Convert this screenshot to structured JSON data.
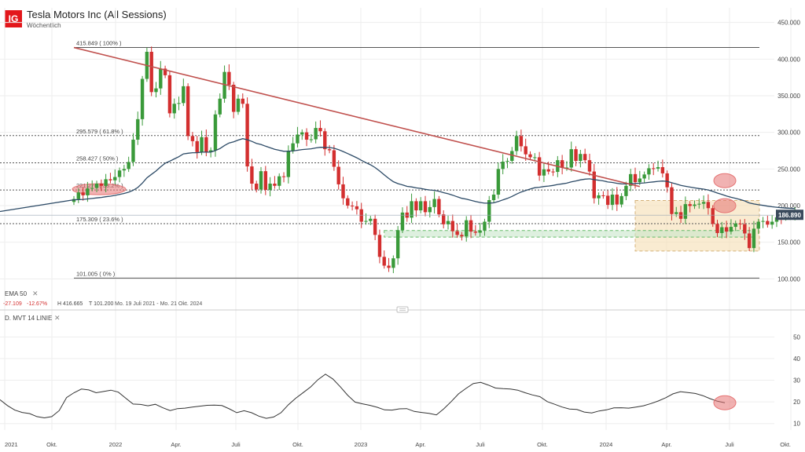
{
  "header": {
    "logo_text": "IG",
    "title": "Tesla Motors Inc (All Sessions)",
    "subtitle": "Wöchentlich"
  },
  "colors": {
    "up": "#3a9a3a",
    "down": "#d32f2f",
    "ema": "#2c4a66",
    "trendline": "#c0504d",
    "fib": "#555555",
    "highlight_oval": "#e57373",
    "box": "#f5deb3",
    "support_zone": "#c8e6c9",
    "price_label_bg": "#3a4a5c"
  },
  "price_panel": {
    "ema_label": "EMA  50",
    "stats": [
      "-27.109",
      "-12.67%",
      "H 416.665",
      "T 101.200",
      "Mo. 19 Juli 2021 - Mo. 21 Okt. 2024"
    ],
    "current_price": "186.890"
  },
  "indicator_panel": {
    "label": "D. MVT  14  LINIE",
    "close_symbol": "✕"
  },
  "chart_data": [
    {
      "type": "candlestick",
      "title": "Tesla Motors Inc (All Sessions)",
      "timeframe": "Wöchentlich",
      "x_ticks": [
        "2021",
        "Okt.",
        "2022",
        "Apr.",
        "Juli",
        "Okt.",
        "2023",
        "Apr.",
        "Juli",
        "Okt.",
        "2024",
        "Apr.",
        "Juli",
        "Okt."
      ],
      "y_ticks": [
        "100.000",
        "150.000",
        "200.000",
        "250.000",
        "300.000",
        "350.000",
        "400.000",
        "450.000"
      ],
      "ylim": [
        95,
        470
      ],
      "fib_levels": [
        {
          "value": 415.849,
          "label": "415.849 ( 100% )"
        },
        {
          "value": 295.579,
          "label": "295.579 ( 61.8% )"
        },
        {
          "value": 258.427,
          "label": "258.427 ( 50% )"
        },
        {
          "value": 221.276,
          "label": "221.276 ( 38.2% )"
        },
        {
          "value": 175.309,
          "label": "175.309 ( 23.6% )"
        },
        {
          "value": 101.005,
          "label": "101.005 ( 0% )"
        }
      ],
      "closes": [
        209.0,
        218.0,
        214.0,
        223.5,
        224.0,
        230.0,
        227.0,
        236.0,
        234.5,
        239.0,
        248.0,
        250.0,
        259.5,
        290.0,
        318.0,
        373.0,
        410.0,
        355.0,
        360.0,
        387.0,
        378.0,
        326.0,
        339.0,
        340.0,
        363.0,
        295.0,
        288.0,
        273.0,
        293.5,
        273.0,
        275.5,
        324.5,
        346.0,
        382.5,
        365.0,
        328.0,
        346.0,
        339.0,
        253.5,
        230.0,
        222.0,
        247.0,
        221.5,
        230.0,
        227.0,
        240.0,
        239.0,
        275.0,
        285.0,
        297.0,
        300.0,
        290.0,
        290.5,
        306.0,
        301.5,
        277.0,
        275.5,
        253.0,
        229.0,
        210.0,
        200.0,
        199.0,
        195.0,
        178.0,
        179.0,
        182.0,
        160.0,
        130.0,
        118.0,
        115.0,
        128.0,
        166.5,
        190.5,
        183.5,
        206.0,
        193.5,
        206.0,
        191.0,
        198.0,
        209.0,
        188.0,
        174.5,
        179.0,
        165.0,
        160.0,
        158.0,
        180.0,
        164.5,
        163.0,
        166.0,
        178.0,
        207.5,
        215.0,
        250.0,
        260.0,
        261.0,
        274.5,
        295.0,
        281.0,
        270.0,
        266.0,
        266.0,
        241.0,
        249.5,
        246.5,
        246.0,
        262.0,
        251.5,
        252.0,
        277.0,
        261.0,
        270.5,
        262.0,
        246.5,
        210.0,
        214.0,
        213.5,
        201.0,
        215.0,
        201.5,
        213.0,
        227.0,
        243.0,
        232.0,
        237.0,
        242.5,
        251.0,
        250.5,
        252.5,
        244.0,
        225.0,
        188.5,
        191.0,
        182.0,
        202.0,
        199.5,
        201.5,
        202.5,
        205.0,
        196.5,
        175.0,
        162.5,
        170.5,
        164.5,
        171.0,
        175.5,
        174.5,
        162.0,
        142.0,
        168.5,
        178.0,
        179.0,
        174.0,
        178.0,
        184.0,
        183.5,
        186.0,
        187.0,
        189.0
      ],
      "ema_50": [
        207.9,
        208.3,
        208.5,
        209.1,
        209.7,
        210.5,
        211.1,
        212.1,
        212.9,
        213.9,
        215.2,
        216.6,
        218.3,
        221.0,
        224.8,
        230.7,
        237.9,
        242.6,
        247.3,
        252.9,
        257.9,
        260.6,
        263.7,
        266.7,
        270.6,
        271.5,
        272.2,
        272.2,
        273.0,
        273.0,
        273.1,
        275.1,
        277.9,
        282.1,
        285.5,
        287.1,
        289.5,
        291.4,
        289.9,
        287.6,
        285.0,
        283.5,
        281.1,
        279.0,
        276.9,
        275.5,
        274.1,
        274.2,
        274.6,
        275.5,
        276.5,
        277.0,
        277.6,
        278.7,
        279.6,
        279.5,
        279.3,
        278.3,
        276.4,
        273.8,
        271.0,
        268.1,
        265.2,
        261.8,
        258.6,
        255.7,
        252.0,
        247.2,
        242.1,
        237.1,
        232.7,
        230.0,
        228.3,
        226.3,
        225.5,
        224.2,
        223.5,
        222.2,
        221.3,
        220.8,
        219.5,
        217.7,
        216.2,
        214.2,
        212.0,
        210.0,
        208.9,
        207.3,
        205.7,
        204.3,
        203.3,
        203.4,
        203.8,
        205.6,
        207.8,
        209.9,
        212.5,
        215.8,
        218.5,
        220.7,
        222.6,
        224.4,
        225.1,
        226.0,
        226.7,
        227.5,
        228.8,
        229.7,
        230.6,
        232.4,
        233.6,
        235.1,
        236.1,
        236.5,
        235.5,
        234.6,
        233.7,
        232.3,
        231.6,
        230.4,
        229.7,
        229.6,
        230.1,
        230.2,
        230.5,
        231.0,
        231.7,
        232.4,
        233.1,
        233.5,
        233.1,
        231.2,
        229.5,
        227.5,
        226.4,
        225.3,
        224.2,
        223.3,
        222.5,
        221.3,
        219.4,
        217.1,
        215.2,
        213.1,
        211.4,
        209.9,
        208.4,
        206.4,
        203.6,
        202.2,
        201.2,
        200.3,
        199.2,
        198.4,
        197.7,
        197.1,
        196.6,
        196.2,
        195.9
      ],
      "trendline": [
        [
          0.0,
          415.849
        ],
        [
          124.0,
          226.0
        ]
      ],
      "support_zone": [
        157.0,
        166.0
      ],
      "consolidation_box": [
        138.0,
        207.0
      ],
      "highlighted_levels": [
        221.276,
        201.0,
        233.0
      ]
    },
    {
      "type": "line",
      "series": [
        {
          "name": "D. MVT 14 LINIE",
          "values": [
            21.0,
            18.3,
            16.2,
            15.1,
            14.6,
            13.2,
            12.6,
            13.2,
            16.0,
            22.0,
            24.2,
            25.9,
            25.5,
            24.2,
            24.8,
            25.4,
            24.5,
            21.7,
            19.0,
            18.8,
            18.2,
            18.9,
            17.3,
            16.0,
            16.9,
            17.1,
            17.6,
            18.0,
            18.4,
            18.5,
            18.3,
            16.8,
            15.0,
            15.9,
            15.0,
            13.4,
            12.4,
            13.0,
            15.0,
            18.7,
            21.7,
            24.3,
            26.9,
            30.3,
            32.8,
            30.6,
            27.0,
            23.1,
            19.9,
            19.1,
            18.4,
            17.5,
            16.3,
            16.2,
            16.8,
            16.9,
            15.6,
            15.1,
            14.7,
            14.0,
            16.8,
            20.1,
            23.7,
            26.2,
            28.5,
            29.0,
            27.8,
            26.4,
            26.1,
            25.9,
            25.4,
            24.2,
            23.2,
            22.4,
            20.1,
            18.9,
            17.6,
            16.7,
            16.5,
            15.3,
            14.9,
            15.8,
            16.3,
            17.2,
            17.3,
            17.1,
            17.6,
            18.2,
            19.2,
            20.4,
            21.9,
            23.7,
            24.7,
            24.3,
            23.9,
            22.9,
            21.5,
            20.3,
            19.6
          ]
        }
      ],
      "yticks": [
        "10",
        "20",
        "30",
        "40",
        "50"
      ],
      "ylim": [
        7,
        57
      ],
      "highlighted_value": 19.6
    }
  ]
}
